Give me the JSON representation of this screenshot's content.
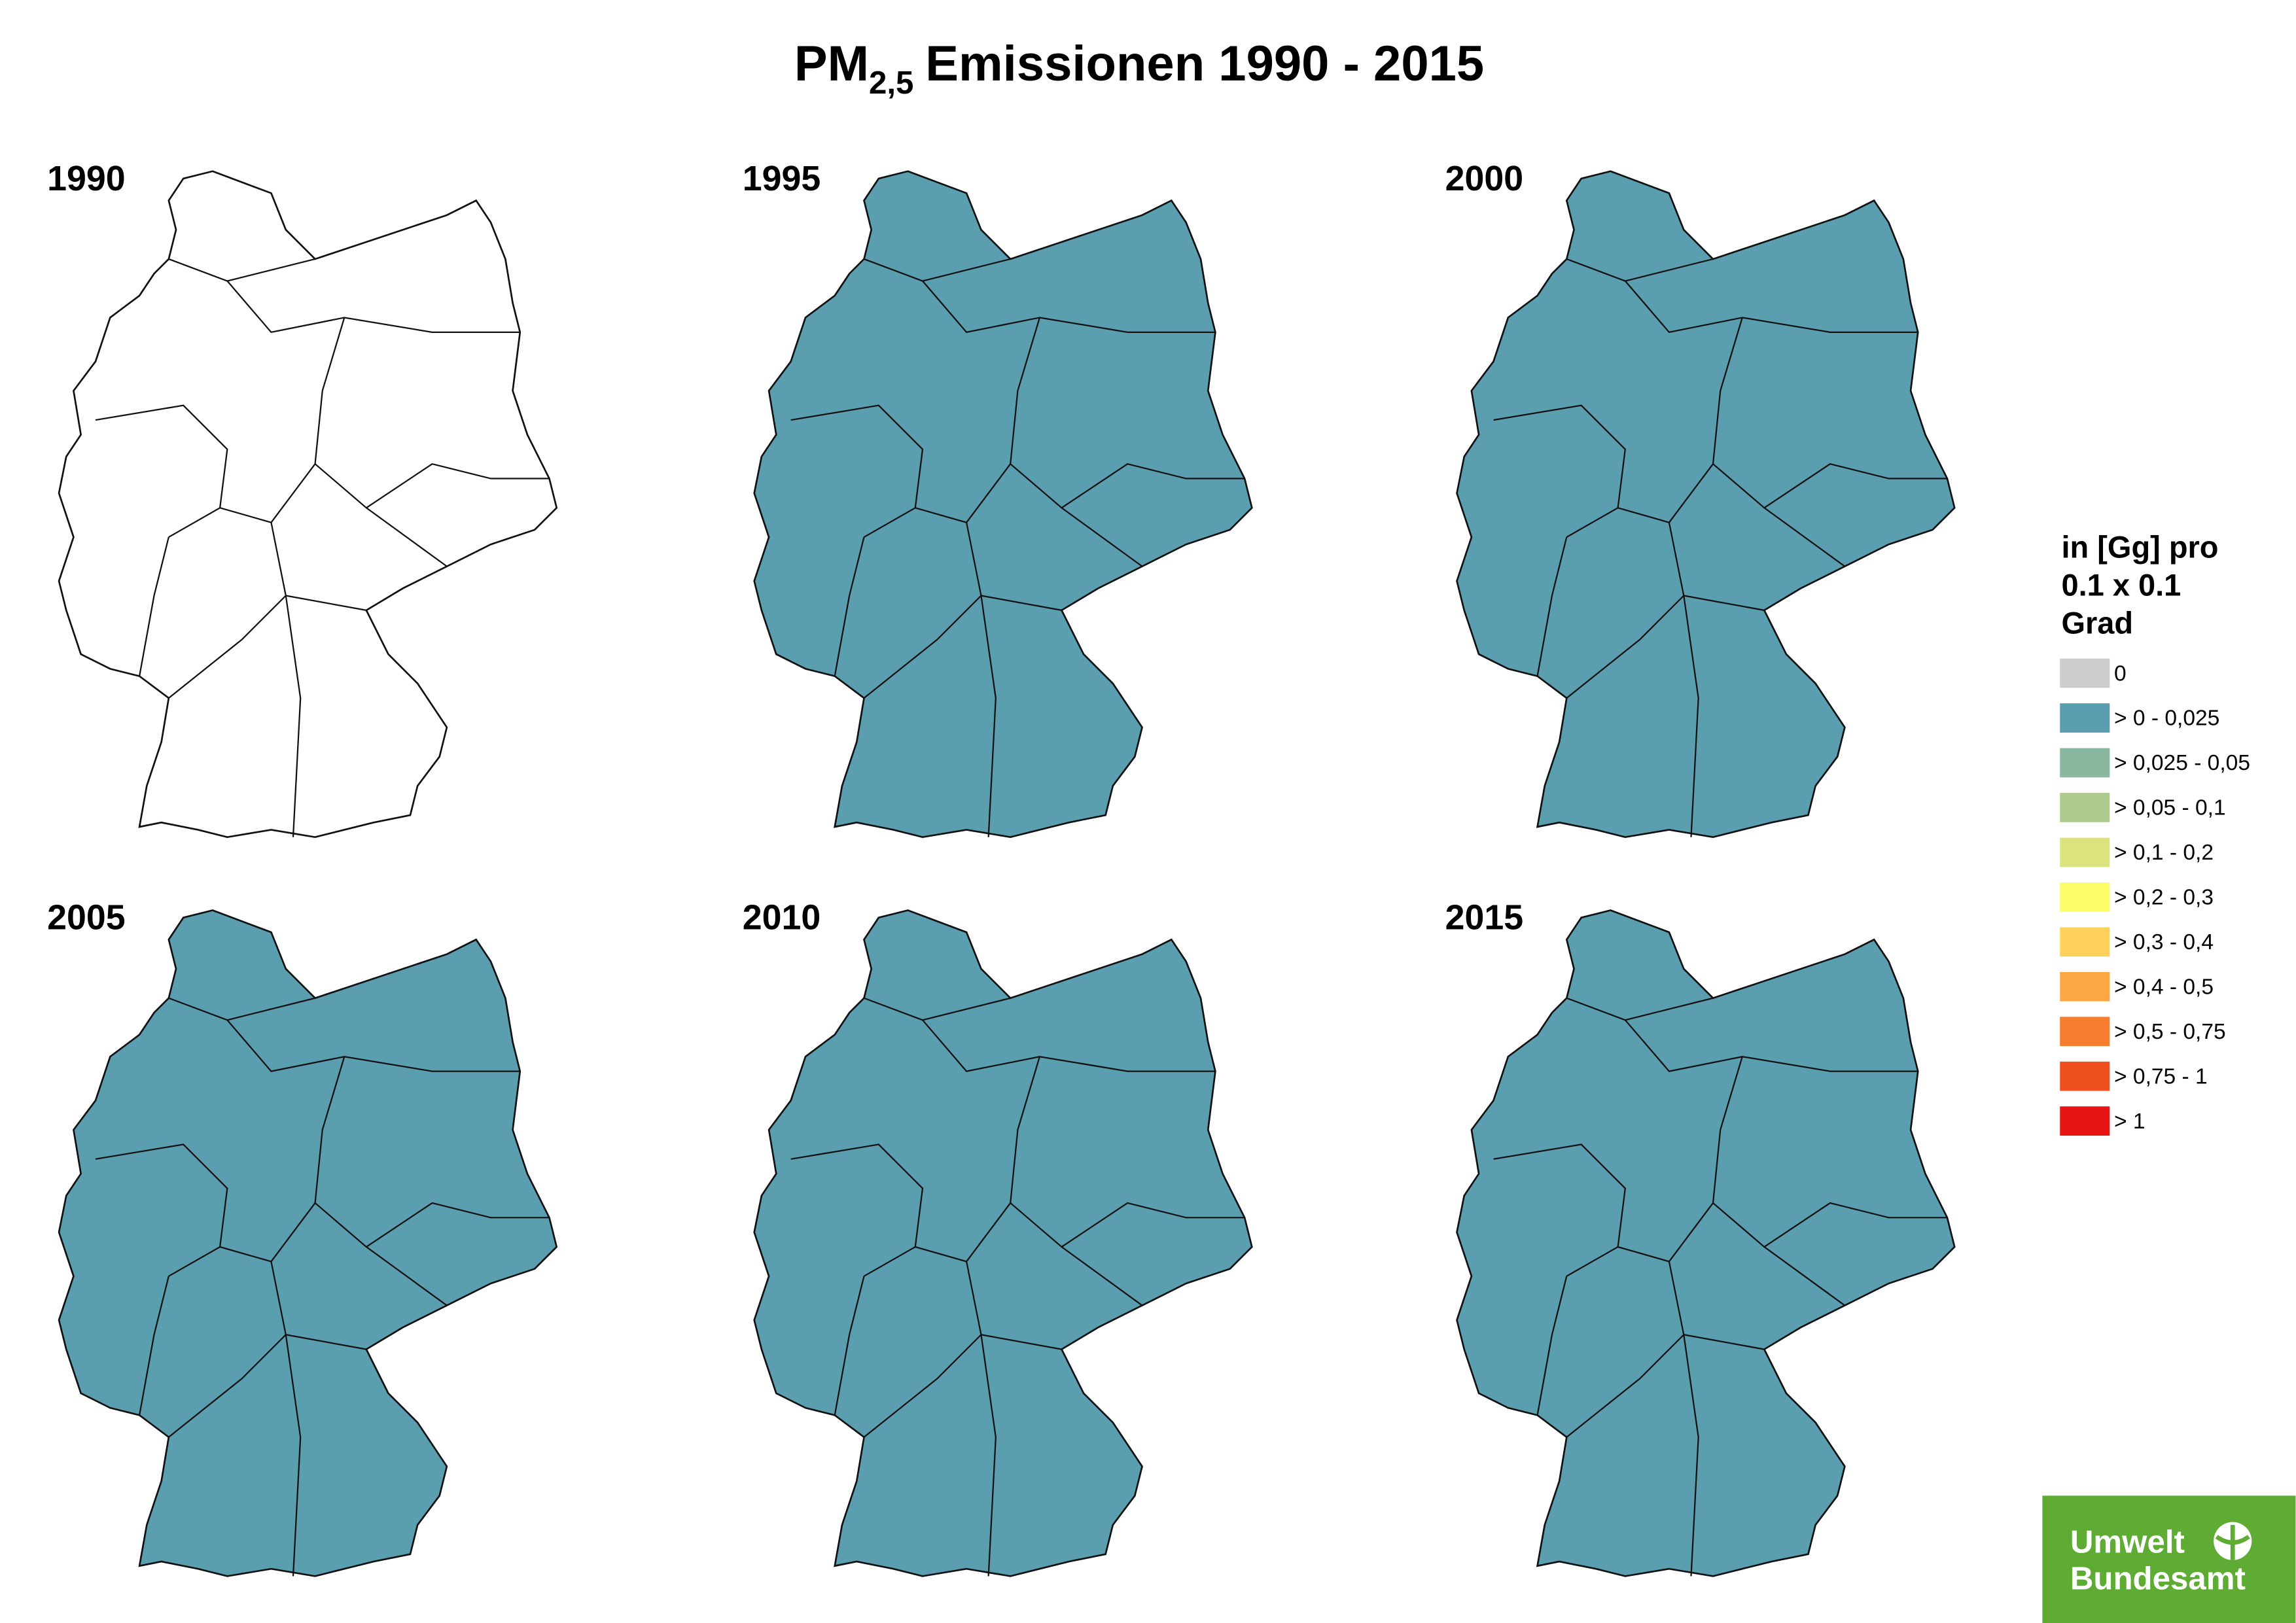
{
  "title": {
    "main": "PM",
    "sub": "2,5",
    "rest": "Emissionen 1990 - 2015"
  },
  "panels": [
    {
      "year": "1990",
      "filled": false
    },
    {
      "year": "1995",
      "filled": true
    },
    {
      "year": "2000",
      "filled": true
    },
    {
      "year": "2005",
      "filled": true
    },
    {
      "year": "2010",
      "filled": true
    },
    {
      "year": "2015",
      "filled": true
    }
  ],
  "map_fill_color": "#5b9eb0",
  "legend": {
    "title_lines": [
      "in [Gg] pro",
      "0.1 x 0.1",
      "Grad"
    ],
    "items": [
      {
        "label": "0",
        "color": "#cccccc"
      },
      {
        "label": "> 0 - 0,025",
        "color": "#5b9eb0"
      },
      {
        "label": "> 0,025 - 0,05",
        "color": "#8ab7a0"
      },
      {
        "label": "> 0,05 - 0,1",
        "color": "#aecb8e"
      },
      {
        "label": "> 0,1 - 0,2",
        "color": "#dbe37f"
      },
      {
        "label": "> 0,2 - 0,3",
        "color": "#fafc6a"
      },
      {
        "label": "> 0,3 - 0,4",
        "color": "#fdd15a"
      },
      {
        "label": "> 0,4 - 0,5",
        "color": "#fba843"
      },
      {
        "label": "> 0,5 - 0,75",
        "color": "#f77d2e"
      },
      {
        "label": "> 0,75 - 1",
        "color": "#f0501f"
      },
      {
        "label": "> 1",
        "color": "#e81515"
      }
    ]
  },
  "logo": {
    "line1": "Umwelt",
    "line2": "Bundesamt"
  }
}
